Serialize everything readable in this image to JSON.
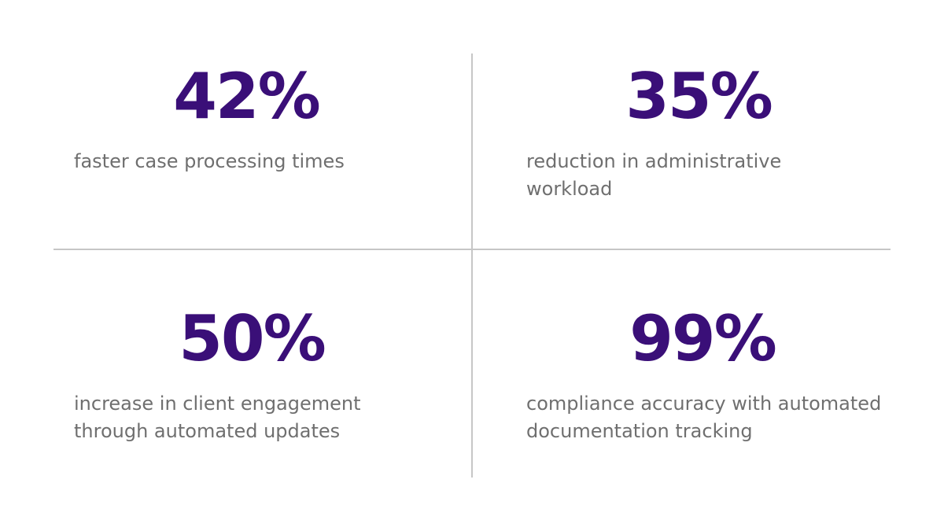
{
  "stats": [
    {
      "value": "42%",
      "description": "faster case processing times"
    },
    {
      "value": "35%",
      "description": "reduction in administrative\nworkload"
    },
    {
      "value": "50%",
      "description": "increase in client engagement\nthrough automated updates"
    },
    {
      "value": "99%",
      "description": "compliance accuracy with automated\ndocumentation tracking"
    }
  ],
  "colors": {
    "value_text": "#3a0f78",
    "description_text": "#6f6f6f",
    "divider": "#c6c6c6",
    "background": "#ffffff"
  }
}
